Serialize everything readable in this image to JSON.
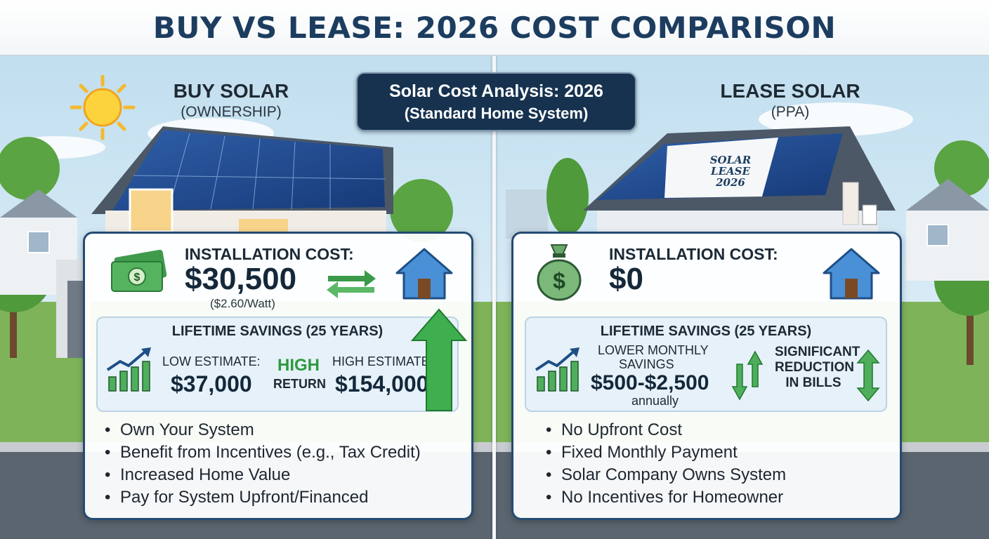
{
  "title": "BUY VS LEASE: 2026 COST COMPARISON",
  "center_badge": {
    "line1": "Solar Cost Analysis: 2026",
    "line2": "(Standard Home System)"
  },
  "buy": {
    "heading": "BUY SOLAR",
    "subheading": "(OWNERSHIP)",
    "install_label": "INSTALLATION COST:",
    "install_value": "$30,500",
    "install_note": "($2.60/Watt)",
    "savings_title": "LIFETIME SAVINGS (25 YEARS)",
    "low_label": "LOW ESTIMATE:",
    "low_value": "$37,000",
    "high_label": "HIGH ESTIMATE:",
    "high_value": "$154,000",
    "return_line1": "HIGH",
    "return_line2": "RETURN",
    "bullets": [
      "Own Your System",
      "Benefit from Incentives (e.g., Tax Credit)",
      "Increased Home Value",
      "Pay for System Upfront/Financed"
    ]
  },
  "lease": {
    "heading": "LEASE SOLAR",
    "subheading": "(PPA)",
    "install_label": "INSTALLATION COST:",
    "install_value": "$0",
    "savings_title": "LIFETIME SAVINGS (25 YEARS)",
    "monthly_label_1": "LOWER MONTHLY",
    "monthly_label_2": "SAVINGS",
    "monthly_value": "$500-$2,500",
    "monthly_note": "annually",
    "reduction_1": "SIGNIFICANT",
    "reduction_2": "REDUCTION",
    "reduction_3": "IN BILLS",
    "roof_sign_1": "SOLAR",
    "roof_sign_2": "LEASE",
    "roof_sign_3": "2026",
    "bullets": [
      "No Upfront Cost",
      "Fixed Monthly Payment",
      "Solar Company Owns System",
      "No Incentives for Homeowner"
    ]
  },
  "colors": {
    "navy": "#1c3d5f",
    "green": "#2e9a3e",
    "sky": "#cfe6f3"
  },
  "icons": [
    "sun-icon",
    "cash-icon",
    "exchange-arrows-icon",
    "house-icon",
    "growth-chart-icon",
    "up-arrow-icon",
    "money-bag-icon",
    "down-up-arrows-icon"
  ]
}
